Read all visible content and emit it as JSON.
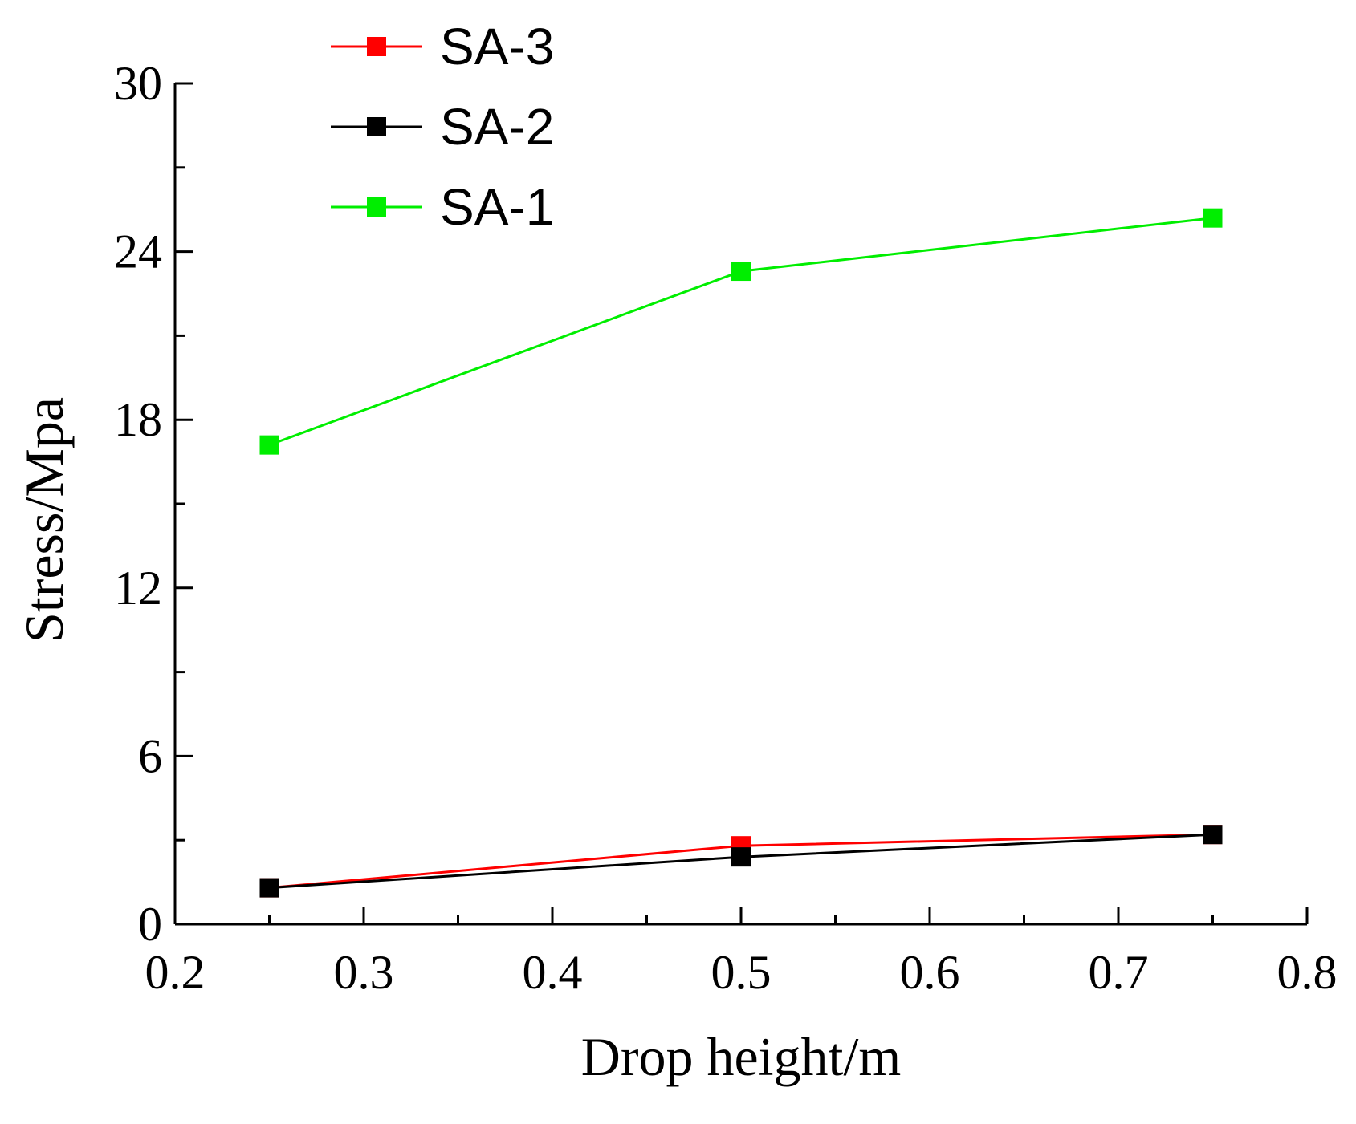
{
  "chart_data": {
    "type": "line",
    "title": "",
    "xlabel": "Drop height/m",
    "ylabel": "Stress/Mpa",
    "xlim": [
      0.2,
      0.8
    ],
    "ylim": [
      0,
      30
    ],
    "x_ticks": [
      "0.2",
      "0.3",
      "0.4",
      "0.5",
      "0.6",
      "0.7",
      "0.8"
    ],
    "y_ticks": [
      "0",
      "6",
      "12",
      "18",
      "24",
      "30"
    ],
    "x_tick_values": [
      0.2,
      0.3,
      0.4,
      0.5,
      0.6,
      0.7,
      0.8
    ],
    "y_tick_values": [
      0,
      6,
      12,
      18,
      24,
      30
    ],
    "grid": false,
    "legend_position": "top-left",
    "series": [
      {
        "name": "SA-3",
        "color": "#ff0000",
        "marker": "square",
        "x": [
          0.25,
          0.5,
          0.75
        ],
        "y": [
          1.3,
          2.8,
          3.2
        ]
      },
      {
        "name": "SA-2",
        "color": "#000000",
        "marker": "square",
        "x": [
          0.25,
          0.5,
          0.75
        ],
        "y": [
          1.3,
          2.4,
          3.2
        ]
      },
      {
        "name": "SA-1",
        "color": "#00ee00",
        "marker": "square",
        "x": [
          0.25,
          0.5,
          0.75
        ],
        "y": [
          17.1,
          23.3,
          25.2
        ]
      }
    ]
  }
}
